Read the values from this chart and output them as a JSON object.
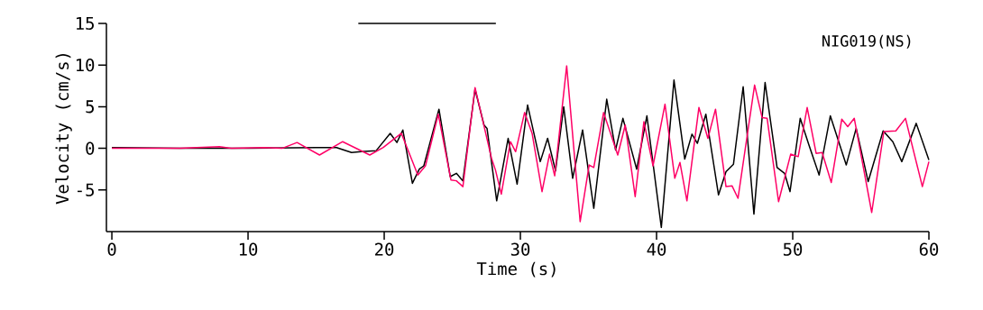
{
  "chart_data": {
    "type": "line",
    "xlabel": "Time (s)",
    "ylabel": "Velocity (cm/s)",
    "annotations": [
      "NIG019(NS)"
    ],
    "xlim": [
      -0.4,
      60
    ],
    "ylim": [
      -10,
      15
    ],
    "xticks": [
      0,
      10,
      20,
      30,
      40,
      50,
      60
    ],
    "yticks": [
      -5,
      0,
      5,
      10,
      15
    ],
    "series": [
      {
        "color": "#000000",
        "x": [
          18.1,
          28.2
        ],
        "values": [
          15,
          15
        ]
      },
      {
        "color": "#000000",
        "x": [
          0,
          5,
          10,
          15,
          16.5,
          17.6,
          18.3,
          19.4,
          20.44,
          20.93,
          21.37,
          22.07,
          22.58,
          22.91,
          24.02,
          24.85,
          25.3,
          25.78,
          26.67,
          27.33,
          27.55,
          28.26,
          29.1,
          29.76,
          30.53,
          31.46,
          32.0,
          32.58,
          33.18,
          33.84,
          34.57,
          35.39,
          36.34,
          36.99,
          37.53,
          38.54,
          39.29,
          40.35,
          41.28,
          42.07,
          42.6,
          43.0,
          43.62,
          44.55,
          45.1,
          45.65,
          46.36,
          47.15,
          47.97,
          48.85,
          49.4,
          49.8,
          50.55,
          51.17,
          51.94,
          52.76,
          53.93,
          54.66,
          55.54,
          56.64,
          57.35,
          58.01,
          59.07,
          60
        ],
        "values": [
          0.1,
          0,
          0,
          0.1,
          0.1,
          -0.5,
          -0.4,
          -0.3,
          1.8,
          0.7,
          2.2,
          -4.2,
          -2.5,
          -2.1,
          4.7,
          -3.4,
          -3.0,
          -3.9,
          7.1,
          2.8,
          2.4,
          -6.3,
          1.2,
          -4.3,
          5.2,
          -1.6,
          1.2,
          -2.7,
          5.0,
          -3.6,
          2.2,
          -7.2,
          5.9,
          -0.2,
          3.6,
          -2.5,
          3.9,
          -9.5,
          8.2,
          -1.3,
          1.7,
          0.6,
          4.1,
          -5.6,
          -2.8,
          -1.9,
          7.4,
          -7.9,
          7.9,
          -2.3,
          -3.0,
          -5.2,
          3.6,
          0.5,
          -3.2,
          3.9,
          -2.0,
          2.4,
          -4.0,
          2.1,
          0.8,
          -1.6,
          3.0,
          -1.4
        ]
      },
      {
        "color": "#ff0066",
        "x": [
          0,
          5,
          7.9,
          8.8,
          11.2,
          12.5,
          13.6,
          15.25,
          16.95,
          18.94,
          19.93,
          21.26,
          22.47,
          23.03,
          23.97,
          24.9,
          25.3,
          25.78,
          26.67,
          27.88,
          28.17,
          28.6,
          29.27,
          29.65,
          30.31,
          30.86,
          31.59,
          32.14,
          32.52,
          33.4,
          34.39,
          35.05,
          35.39,
          36.11,
          37.15,
          37.7,
          38.43,
          39.07,
          39.74,
          40.62,
          41.34,
          41.72,
          42.23,
          43.11,
          43.77,
          44.33,
          45.1,
          45.54,
          45.98,
          47.2,
          47.75,
          48.12,
          48.96,
          49.85,
          50.4,
          51.06,
          51.72,
          52.16,
          52.83,
          53.6,
          54.04,
          54.52,
          55.8,
          56.69,
          57.57,
          58.28,
          59.52,
          60
        ],
        "values": [
          0,
          0,
          0.2,
          0,
          0.1,
          0,
          0.7,
          -0.8,
          0.8,
          -0.8,
          0.1,
          1.8,
          -3.2,
          -2.1,
          4.1,
          -3.8,
          -3.9,
          -4.6,
          7.3,
          -1.2,
          -2.6,
          -5.5,
          0.8,
          -0.4,
          4.3,
          1.8,
          -5.2,
          -0.7,
          -3.3,
          9.9,
          -8.8,
          -2.0,
          -2.3,
          4.3,
          -0.8,
          2.8,
          -5.8,
          3.2,
          -2.1,
          5.3,
          -3.6,
          -1.7,
          -6.3,
          4.9,
          1.2,
          4.7,
          -4.6,
          -4.5,
          -6.0,
          7.6,
          3.7,
          3.6,
          -6.4,
          -0.7,
          -1.0,
          4.9,
          -0.6,
          -0.5,
          -4.1,
          3.5,
          2.6,
          3.6,
          -7.7,
          2.0,
          2.1,
          3.6,
          -4.6,
          -1.6
        ]
      }
    ]
  }
}
